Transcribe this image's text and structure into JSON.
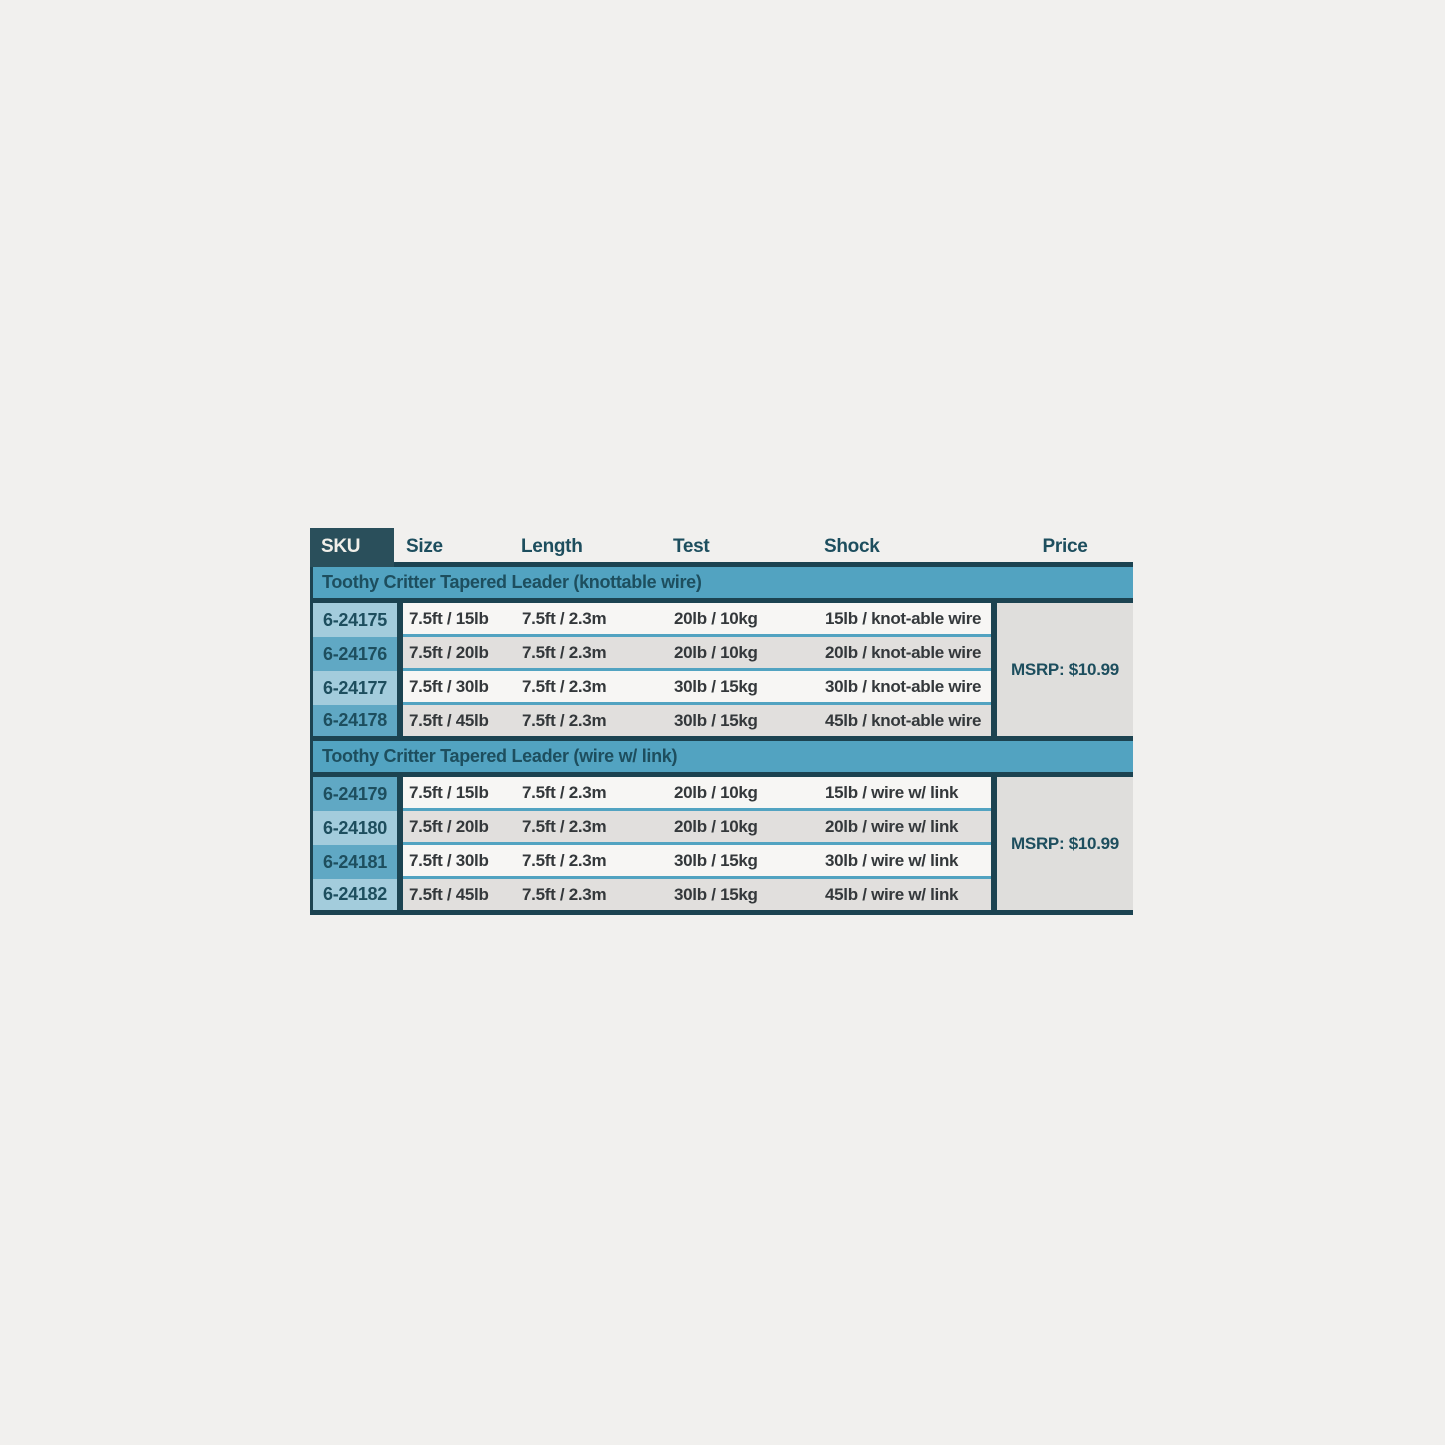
{
  "colors": {
    "page-bg": "#f1f0ee",
    "line": "#1c4351",
    "dark-box": "#2a4f5b",
    "band": "#52a3c1",
    "sku-light": "#a3ccdc",
    "sku-dark": "#60a8c4",
    "row-white": "#f7f6f4",
    "row-gray": "#e1dfdd",
    "price-bg": "#dfdedc",
    "text-teal": "#1d4e5e",
    "text-dark": "#34383b",
    "sku-head-text": "#f2efe9"
  },
  "header": {
    "sku": "SKU",
    "size": "Size",
    "length": "Length",
    "test": "Test",
    "shock": "Shock",
    "price": "Price"
  },
  "sections": [
    {
      "title": "Toothy Critter Tapered Leader (knottable wire)",
      "msrp": "MSRP: $10.99",
      "rows": [
        {
          "sku": "6-24175",
          "size": "7.5ft / 15lb",
          "length": "7.5ft / 2.3m",
          "test": "20lb / 10kg",
          "shock": "15lb / knot-able wire"
        },
        {
          "sku": "6-24176",
          "size": "7.5ft / 20lb",
          "length": "7.5ft / 2.3m",
          "test": "20lb / 10kg",
          "shock": "20lb / knot-able wire"
        },
        {
          "sku": "6-24177",
          "size": "7.5ft / 30lb",
          "length": "7.5ft / 2.3m",
          "test": "30lb / 15kg",
          "shock": "30lb / knot-able wire"
        },
        {
          "sku": "6-24178",
          "size": "7.5ft / 45lb",
          "length": "7.5ft / 2.3m",
          "test": "30lb / 15kg",
          "shock": "45lb / knot-able wire"
        }
      ]
    },
    {
      "title": "Toothy Critter Tapered Leader (wire w/ link)",
      "msrp": "MSRP: $10.99",
      "rows": [
        {
          "sku": "6-24179",
          "size": "7.5ft / 15lb",
          "length": "7.5ft / 2.3m",
          "test": "20lb / 10kg",
          "shock": "15lb / wire w/ link"
        },
        {
          "sku": "6-24180",
          "size": "7.5ft / 20lb",
          "length": "7.5ft / 2.3m",
          "test": "20lb / 10kg",
          "shock": "20lb / wire w/ link"
        },
        {
          "sku": "6-24181",
          "size": "7.5ft / 30lb",
          "length": "7.5ft / 2.3m",
          "test": "30lb / 15kg",
          "shock": "30lb / wire w/ link"
        },
        {
          "sku": "6-24182",
          "size": "7.5ft / 45lb",
          "length": "7.5ft / 2.3m",
          "test": "30lb / 15kg",
          "shock": "45lb / wire w/ link"
        }
      ]
    }
  ]
}
